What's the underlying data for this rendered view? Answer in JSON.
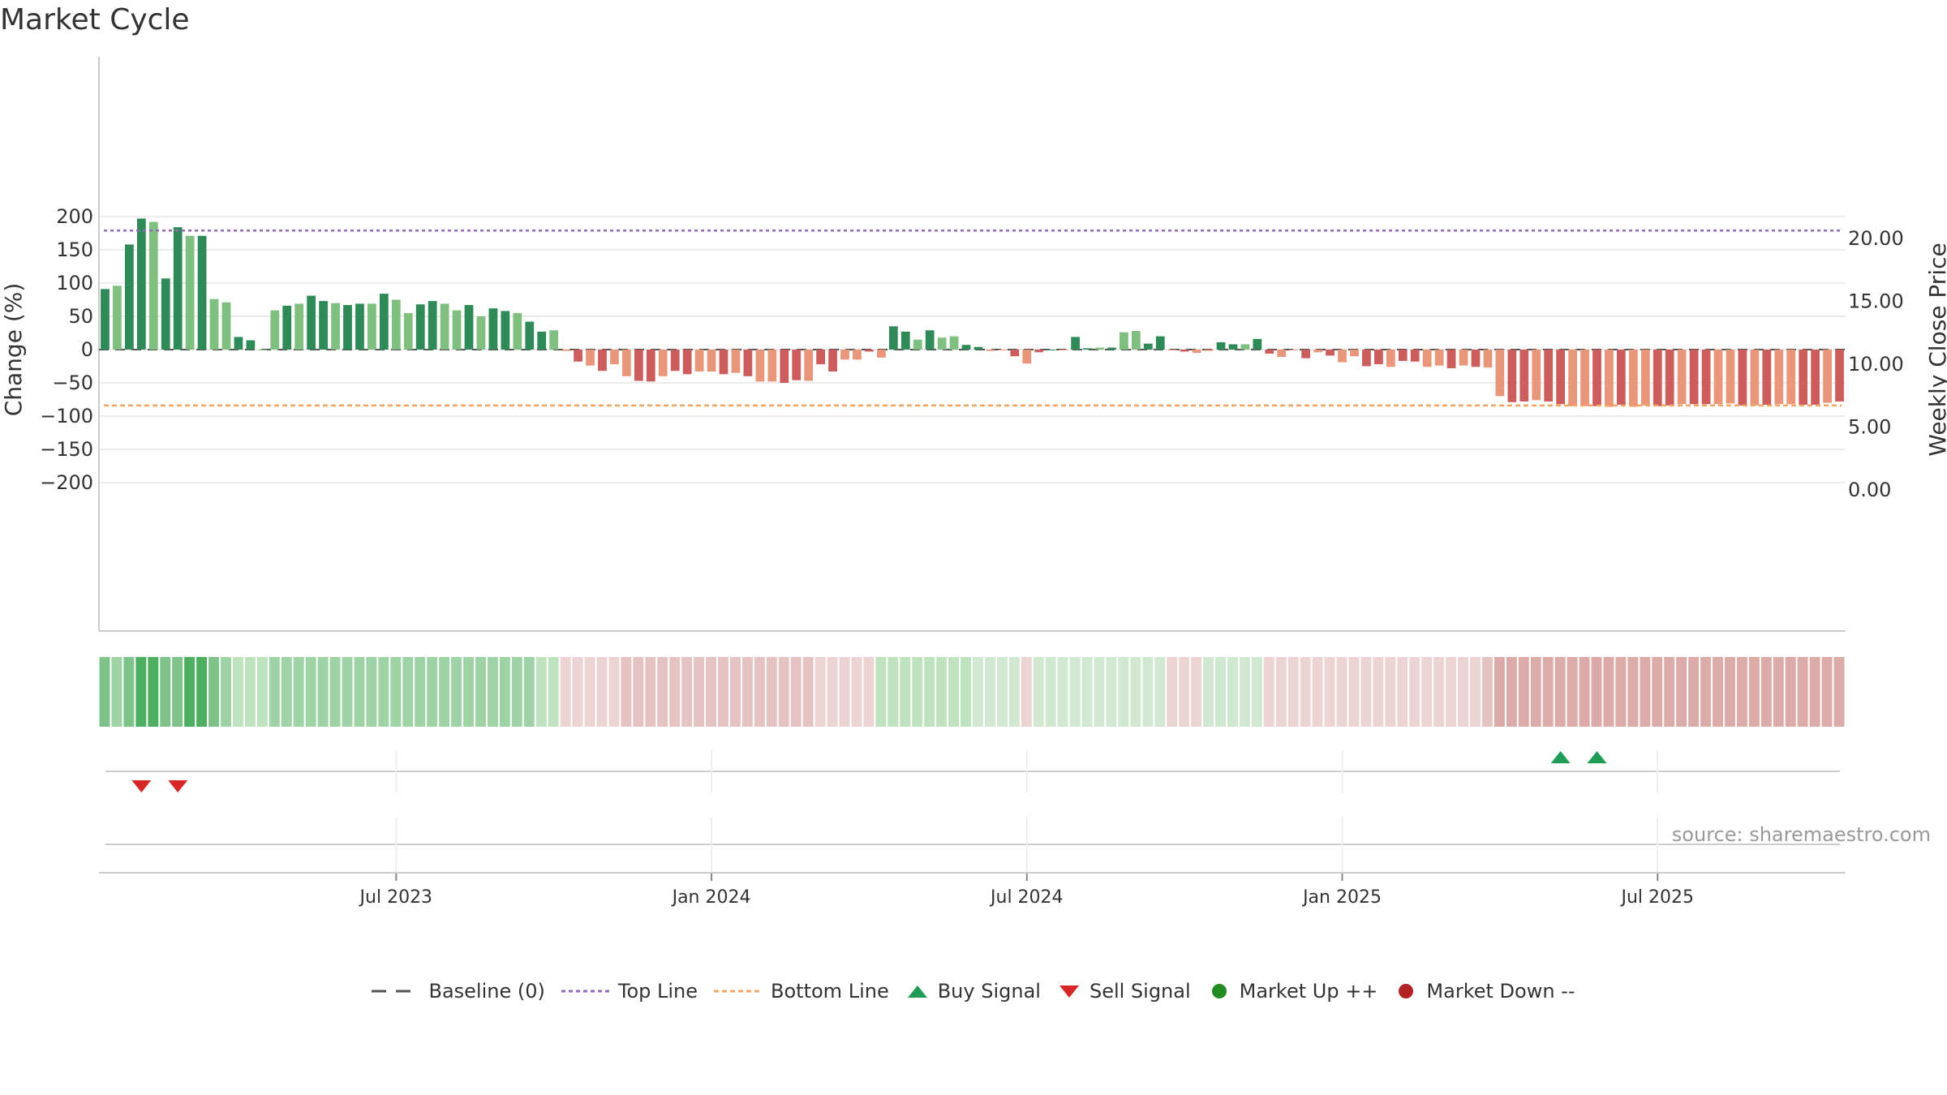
{
  "title": "Market Cycle",
  "source_text": "source: sharemaestro.com",
  "colors": {
    "up_strong": "#2e8b57",
    "up_light": "#7fbf7f",
    "down_strong": "#cd5c5c",
    "down_light": "#e9967a",
    "top_line": "#9467bd",
    "bottom_line": "#f4a460",
    "buy": "#1f9d55",
    "sell": "#d62728",
    "market_up": "#228b22",
    "market_down": "#b22222",
    "baseline": "#555555"
  },
  "legend": [
    {
      "label": "Baseline (0)",
      "icon": "dash-line-icon"
    },
    {
      "label": "Top Line",
      "icon": "dotted-purple-line-icon"
    },
    {
      "label": "Bottom Line",
      "icon": "dotted-orange-line-icon"
    },
    {
      "label": "Buy Signal",
      "icon": "triangle-up-icon"
    },
    {
      "label": "Sell Signal",
      "icon": "triangle-down-icon"
    },
    {
      "label": "Market Up ++",
      "icon": "green-dot-icon"
    },
    {
      "label": "Market Down --",
      "icon": "red-dot-icon"
    }
  ],
  "chart_data": {
    "type": "bar",
    "ylabel": "Change (%)",
    "ylabel_right": "Weekly Close Price",
    "ylim": [
      -210,
      210
    ],
    "yticks": [
      "200",
      "150",
      "100",
      "50",
      "0",
      "−50",
      "−100",
      "−150",
      "−200"
    ],
    "ylim_right": [
      0,
      22.2
    ],
    "yticks_right": [
      "20.00",
      "15.00",
      "10.00",
      "5.00",
      "0.00"
    ],
    "x_tick_labels": [
      "Jul 2023",
      "Jan 2024",
      "Jul 2024",
      "Jan 2025",
      "Jul 2025"
    ],
    "x_tick_week_index": [
      24,
      50,
      76,
      102,
      128
    ],
    "top_line": 179,
    "bottom_line": -84,
    "series": [
      {
        "values": [
          91,
          96,
          158,
          197,
          192,
          107,
          184,
          171,
          171,
          76,
          71,
          19,
          14,
          0,
          59,
          66,
          69,
          81,
          73,
          70,
          67,
          69,
          69,
          84,
          75,
          55,
          68,
          73,
          69,
          59,
          67,
          50,
          62,
          58,
          55,
          42,
          27,
          29,
          -2,
          -18,
          -24,
          -32,
          -22,
          -40,
          -47,
          -48,
          -40,
          -32,
          -37,
          -33,
          -33,
          -37,
          -35,
          -40,
          -48,
          -48,
          -50,
          -46,
          -47,
          -22,
          -33,
          -15,
          -15,
          -3,
          -12,
          35,
          27,
          15,
          29,
          18,
          20,
          7,
          4,
          -2,
          -1,
          -10,
          -21,
          -4,
          0,
          -1,
          19,
          2,
          3,
          3,
          26,
          28,
          9,
          20,
          -1,
          -3,
          -5,
          -2,
          11,
          8,
          8,
          16,
          -6,
          -11,
          -1,
          -13,
          -4,
          -9,
          -19,
          -10,
          -25,
          -22,
          -26,
          -17,
          -18,
          -26,
          -24,
          -28,
          -24,
          -26,
          -27,
          -70,
          -79,
          -78,
          -76,
          -78,
          -82,
          -85,
          -85,
          -85,
          -86,
          -83,
          -86,
          -84,
          -85,
          -84,
          -82,
          -82,
          -82,
          -82,
          -81,
          -84,
          -84,
          -83,
          -82,
          -82,
          -83,
          -83,
          -80,
          -78
        ]
      }
    ],
    "heat_strip": [
      4,
      3,
      4,
      5,
      5,
      4,
      4,
      5,
      5,
      4,
      3,
      2,
      2,
      2,
      3,
      3,
      3,
      3,
      3,
      3,
      3,
      3,
      3,
      3,
      3,
      3,
      3,
      3,
      3,
      3,
      3,
      3,
      3,
      3,
      3,
      3,
      2,
      2,
      -1,
      -1,
      -1,
      -1,
      -1,
      -2,
      -2,
      -2,
      -2,
      -2,
      -2,
      -2,
      -2,
      -2,
      -2,
      -2,
      -2,
      -2,
      -2,
      -2,
      -2,
      -1,
      -1,
      -1,
      -1,
      -1,
      2,
      2,
      2,
      2,
      2,
      2,
      2,
      2,
      1,
      1,
      1,
      1,
      -1,
      1,
      1,
      1,
      1,
      1,
      1,
      1,
      1,
      1,
      1,
      1,
      -1,
      -1,
      -1,
      1,
      1,
      1,
      1,
      1,
      -1,
      -1,
      -1,
      -1,
      -1,
      -1,
      -1,
      -1,
      -1,
      -1,
      -1,
      -1,
      -1,
      -1,
      -1,
      -1,
      -1,
      -1,
      -2,
      -3,
      -3,
      -3,
      -3,
      -3,
      -3,
      -3,
      -3,
      -3,
      -3,
      -3,
      -3,
      -3,
      -3,
      -3,
      -3,
      -3,
      -3,
      -3,
      -3,
      -3,
      -3,
      -3,
      -3,
      -3,
      -3,
      -3,
      -3,
      -3
    ],
    "buy_signals": [
      120,
      123
    ],
    "sell_signals": [
      3,
      6
    ]
  }
}
